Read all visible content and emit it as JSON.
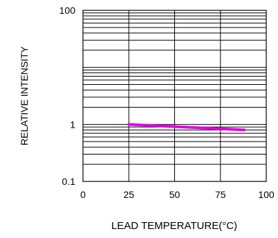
{
  "chart_data": {
    "type": "line",
    "title": "",
    "xlabel": "LEAD TEMPERATURE(°C)",
    "ylabel": "RELATIVE INTENSITY",
    "x_ticks": [
      "0",
      "25",
      "50",
      "75",
      "100"
    ],
    "y_ticks": [
      "0.1",
      "1",
      "100"
    ],
    "xlim": [
      0,
      100
    ],
    "ylim": [
      0.1,
      100
    ],
    "y_scale": "log",
    "grid": true,
    "series": [
      {
        "color": "#e000e0",
        "x": [
          25,
          88
        ],
        "y": [
          1.0,
          0.8
        ]
      }
    ]
  }
}
